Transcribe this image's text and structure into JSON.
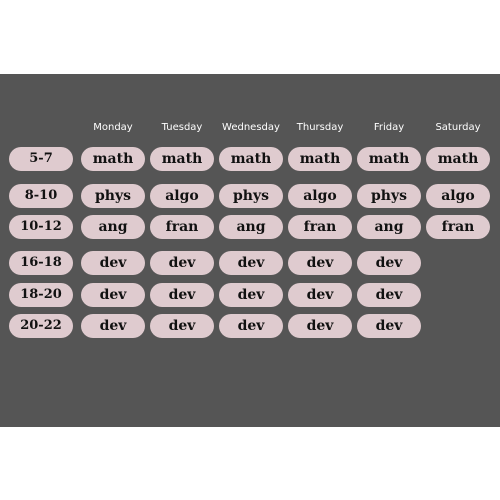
{
  "days": [
    "Monday",
    "Tuesday",
    "Wednesday",
    "Thursday",
    "Friday",
    "Saturday"
  ],
  "rows": [
    {
      "time": "5-7",
      "cells": [
        "math",
        "math",
        "math",
        "math",
        "math",
        "math"
      ]
    },
    {
      "time": "8-10",
      "cells": [
        "phys",
        "algo",
        "phys",
        "algo",
        "phys",
        "algo"
      ]
    },
    {
      "time": "10-12",
      "cells": [
        "ang",
        "fran",
        "ang",
        "fran",
        "ang",
        "fran"
      ]
    },
    {
      "time": "16-18",
      "cells": [
        "dev",
        "dev",
        "dev",
        "dev",
        "dev"
      ]
    },
    {
      "time": "18-20",
      "cells": [
        "dev",
        "dev",
        "dev",
        "dev",
        "dev"
      ]
    },
    {
      "time": "20-22",
      "cells": [
        "dev",
        "dev",
        "dev",
        "dev",
        "dev"
      ]
    }
  ],
  "colors": {
    "background": "#555555",
    "pill": "#dfcbcf",
    "pill_text": "#111111",
    "header_text": "#ffffff"
  }
}
